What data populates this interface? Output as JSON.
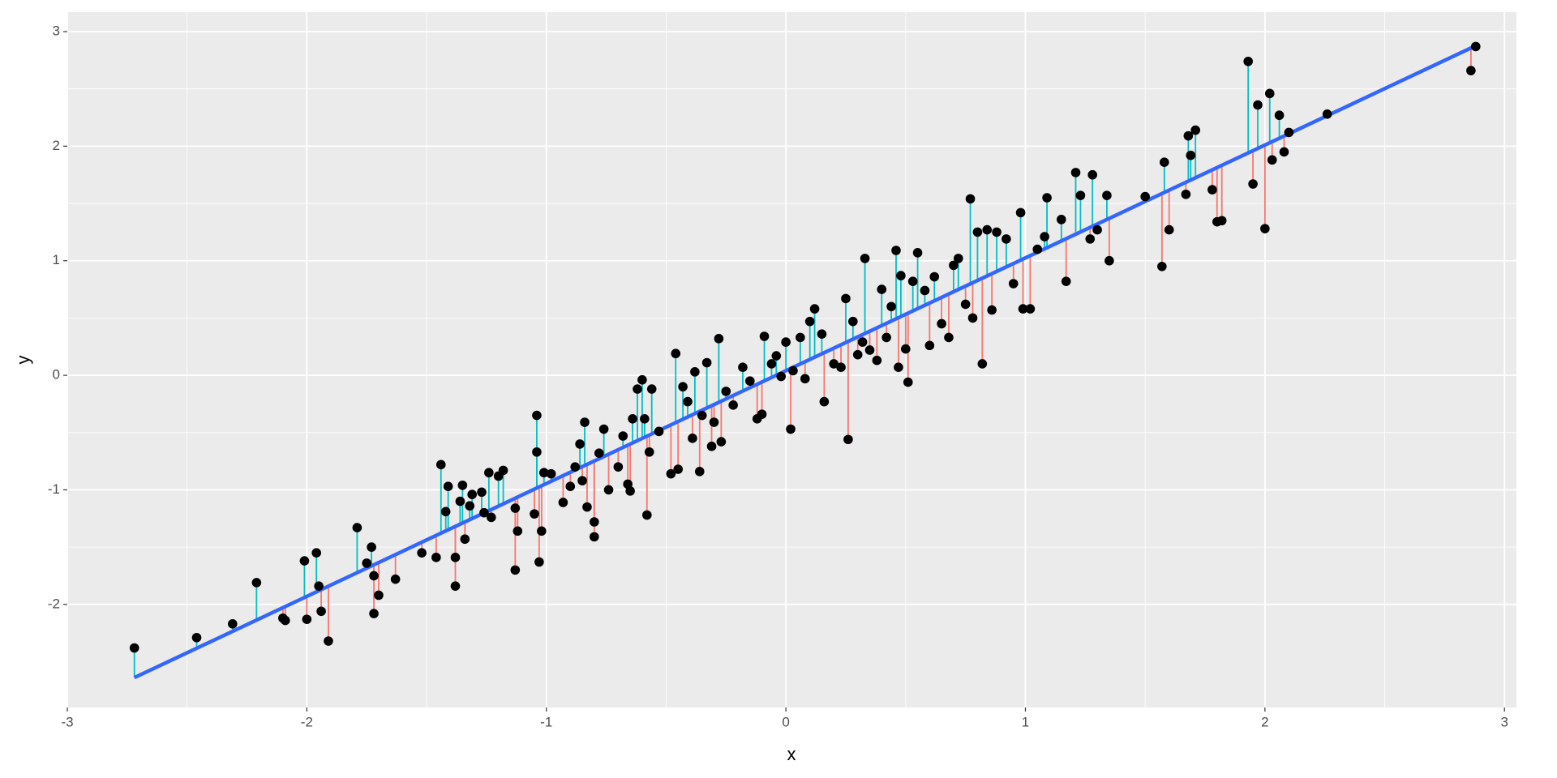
{
  "chart_data": {
    "type": "scatter",
    "x_label": "x",
    "y_label": "y",
    "xlim": [
      -3,
      3.05
    ],
    "ylim": [
      -2.9,
      3.17
    ],
    "xticks": [
      -3,
      -2,
      -1,
      0,
      1,
      2,
      3
    ],
    "yticks": [
      -2,
      -1,
      0,
      1,
      2,
      3
    ],
    "grid": true,
    "point_color": "#000000",
    "fit": {
      "intercept": 0.04,
      "slope": 0.985,
      "color": "#3366FF"
    },
    "residual_colors": {
      "positive": "#00BFC4",
      "negative": "#F8766D"
    },
    "x": [
      -2.72,
      -2.46,
      -2.31,
      -2.21,
      -2.1,
      -2.09,
      -2.01,
      -2.0,
      -1.96,
      -1.95,
      -1.94,
      -1.91,
      -1.79,
      -1.75,
      -1.73,
      -1.72,
      -1.72,
      -1.7,
      -1.63,
      -1.52,
      -1.46,
      -1.44,
      -1.42,
      -1.41,
      -1.38,
      -1.38,
      -1.36,
      -1.35,
      -1.34,
      -1.32,
      -1.31,
      -1.27,
      -1.26,
      -1.24,
      -1.23,
      -1.2,
      -1.18,
      -1.13,
      -1.13,
      -1.12,
      -1.05,
      -1.04,
      -1.04,
      -1.03,
      -1.02,
      -1.01,
      -0.98,
      -0.93,
      -0.9,
      -0.88,
      -0.86,
      -0.85,
      -0.84,
      -0.83,
      -0.8,
      -0.8,
      -0.78,
      -0.76,
      -0.74,
      -0.7,
      -0.68,
      -0.66,
      -0.65,
      -0.64,
      -0.62,
      -0.6,
      -0.59,
      -0.58,
      -0.57,
      -0.56,
      -0.53,
      -0.48,
      -0.46,
      -0.45,
      -0.43,
      -0.41,
      -0.39,
      -0.38,
      -0.36,
      -0.35,
      -0.33,
      -0.31,
      -0.3,
      -0.28,
      -0.27,
      -0.25,
      -0.22,
      -0.18,
      -0.15,
      -0.12,
      -0.1,
      -0.09,
      -0.06,
      -0.04,
      -0.02,
      0.0,
      0.02,
      0.03,
      0.06,
      0.08,
      0.1,
      0.12,
      0.15,
      0.16,
      0.2,
      0.23,
      0.25,
      0.26,
      0.28,
      0.3,
      0.32,
      0.33,
      0.35,
      0.38,
      0.4,
      0.42,
      0.44,
      0.46,
      0.47,
      0.48,
      0.5,
      0.51,
      0.53,
      0.55,
      0.58,
      0.6,
      0.62,
      0.65,
      0.68,
      0.7,
      0.72,
      0.75,
      0.77,
      0.78,
      0.8,
      0.82,
      0.84,
      0.86,
      0.88,
      0.92,
      0.95,
      0.98,
      0.99,
      1.02,
      1.05,
      1.08,
      1.09,
      1.15,
      1.17,
      1.21,
      1.23,
      1.27,
      1.28,
      1.3,
      1.34,
      1.35,
      1.5,
      1.57,
      1.58,
      1.6,
      1.67,
      1.68,
      1.69,
      1.71,
      1.78,
      1.8,
      1.82,
      1.93,
      1.95,
      1.97,
      2.0,
      2.02,
      2.03,
      2.06,
      2.08,
      2.1,
      2.26,
      2.86,
      2.88
    ],
    "y": [
      -2.38,
      -2.29,
      -2.17,
      -1.81,
      -2.12,
      -2.14,
      -1.62,
      -2.13,
      -1.55,
      -1.84,
      -2.06,
      -2.32,
      -1.33,
      -1.64,
      -1.5,
      -1.75,
      -2.08,
      -1.92,
      -1.78,
      -1.55,
      -1.59,
      -0.78,
      -1.19,
      -0.97,
      -1.59,
      -1.84,
      -1.1,
      -0.96,
      -1.43,
      -1.14,
      -1.04,
      -1.02,
      -1.2,
      -0.85,
      -1.24,
      -0.88,
      -0.83,
      -1.16,
      -1.7,
      -1.36,
      -1.21,
      -0.35,
      -0.67,
      -1.63,
      -1.36,
      -0.85,
      -0.86,
      -1.11,
      -0.97,
      -0.8,
      -0.6,
      -0.92,
      -0.41,
      -1.15,
      -1.28,
      -1.41,
      -0.68,
      -0.47,
      -1.0,
      -0.8,
      -0.53,
      -0.95,
      -1.01,
      -0.38,
      -0.12,
      -0.04,
      -0.38,
      -1.22,
      -0.67,
      -0.12,
      -0.49,
      -0.86,
      0.19,
      -0.82,
      -0.1,
      -0.23,
      -0.55,
      0.03,
      -0.84,
      -0.35,
      0.11,
      -0.62,
      -0.41,
      0.32,
      -0.58,
      -0.14,
      -0.26,
      0.07,
      -0.05,
      -0.38,
      -0.34,
      0.34,
      0.1,
      0.17,
      -0.01,
      0.29,
      -0.47,
      0.04,
      0.33,
      -0.03,
      0.47,
      0.58,
      0.36,
      -0.23,
      0.1,
      0.07,
      0.67,
      -0.56,
      0.47,
      0.18,
      0.29,
      1.02,
      0.22,
      0.13,
      0.75,
      0.33,
      0.6,
      1.09,
      0.07,
      0.87,
      0.23,
      -0.06,
      0.82,
      1.07,
      0.74,
      0.26,
      0.86,
      0.45,
      0.33,
      0.96,
      1.02,
      0.62,
      1.54,
      0.5,
      1.25,
      0.1,
      1.27,
      0.57,
      1.25,
      1.19,
      0.8,
      1.42,
      0.58,
      0.58,
      1.1,
      1.21,
      1.55,
      1.36,
      0.82,
      1.77,
      1.57,
      1.19,
      1.75,
      1.27,
      1.57,
      1.0,
      1.56,
      0.95,
      1.86,
      1.27,
      1.58,
      2.09,
      1.92,
      2.14,
      1.62,
      1.34,
      1.35,
      2.74,
      1.67,
      2.36,
      1.28,
      2.46,
      1.88,
      2.27,
      1.95,
      2.12,
      2.28,
      2.66,
      2.87
    ]
  }
}
